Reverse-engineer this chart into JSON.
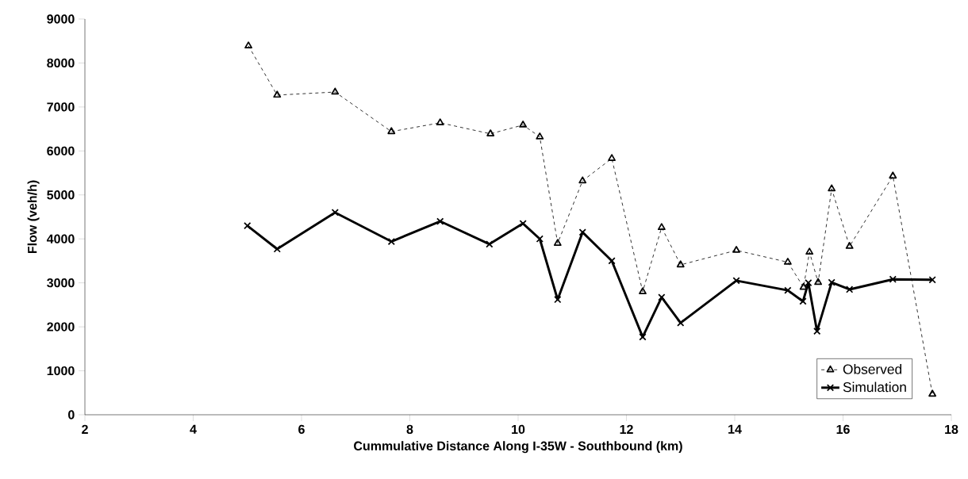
{
  "chart_data": {
    "type": "line",
    "xlabel": "Cummulative Distance Along I-35W - Southbound (km)",
    "ylabel": "Flow (veh/h)",
    "xlim": [
      2,
      18
    ],
    "xticks": [
      2,
      4,
      6,
      8,
      10,
      12,
      14,
      16,
      18
    ],
    "ylim": [
      0,
      9000
    ],
    "yticks": [
      0,
      1000,
      2000,
      3000,
      4000,
      5000,
      6000,
      7000,
      8000,
      9000
    ],
    "grid": false,
    "legend": "bottom right",
    "series": [
      {
        "name": "Observed",
        "color": "#000000",
        "marker": "triangle",
        "line_style": "dashed",
        "x": [
          5.02,
          5.55,
          6.62,
          7.66,
          8.56,
          9.49,
          10.09,
          10.4,
          10.73,
          11.19,
          11.73,
          12.3,
          12.65,
          13.0,
          14.03,
          14.98,
          15.27,
          15.38,
          15.54,
          15.79,
          16.12,
          16.92,
          17.65
        ],
        "values": [
          8390,
          7270,
          7340,
          6440,
          6640,
          6390,
          6590,
          6320,
          3900,
          5320,
          5830,
          2800,
          4260,
          3410,
          3740,
          3470,
          2900,
          3700,
          3010,
          5140,
          3830,
          5430,
          470
        ]
      },
      {
        "name": "Simulation",
        "color": "#000000",
        "marker": "cross",
        "line_style": "solid",
        "x": [
          5.0,
          5.55,
          6.62,
          7.66,
          8.56,
          9.47,
          10.09,
          10.4,
          10.73,
          11.19,
          11.73,
          12.3,
          12.65,
          13.0,
          14.03,
          14.98,
          15.26,
          15.36,
          15.52,
          15.79,
          16.12,
          16.92,
          17.65
        ],
        "values": [
          4300,
          3770,
          4600,
          3940,
          4400,
          3880,
          4350,
          4000,
          2620,
          4150,
          3500,
          1770,
          2670,
          2090,
          3050,
          2830,
          2580,
          3000,
          1900,
          3010,
          2850,
          3080,
          3070
        ]
      }
    ]
  }
}
